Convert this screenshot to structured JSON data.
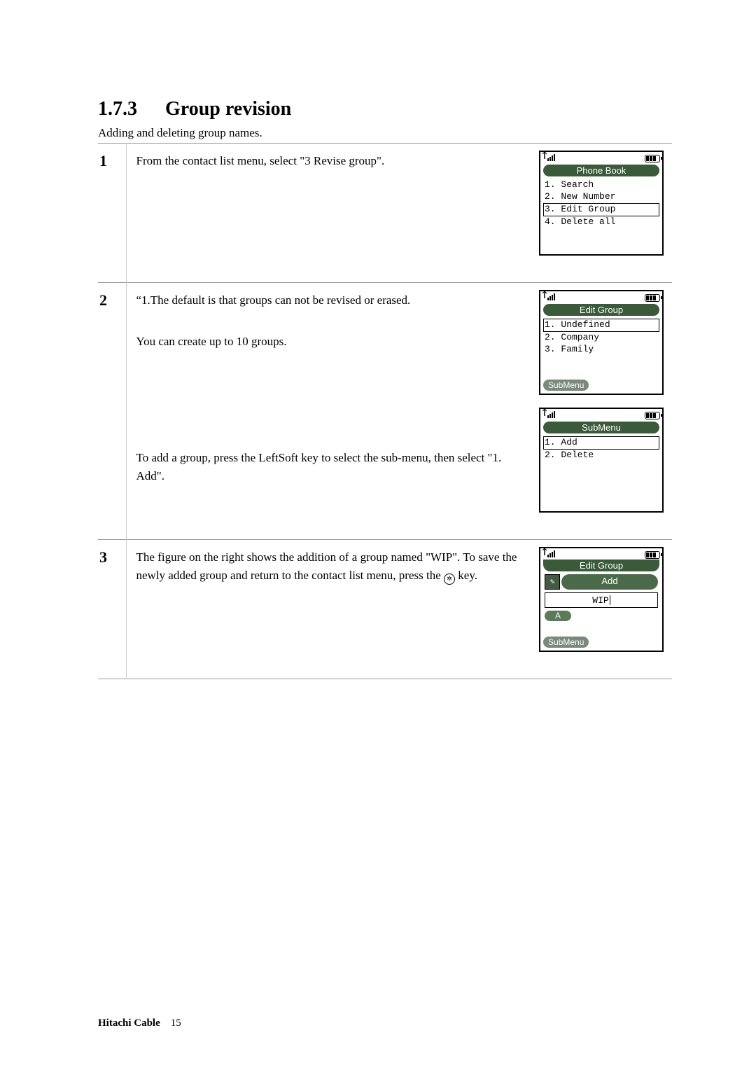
{
  "heading": {
    "number": "1.7.3",
    "title": "Group revision"
  },
  "intro": "Adding and deleting group names.",
  "steps": [
    {
      "num": "1",
      "blocks": [
        {
          "text": "From the contact list menu, select \"3 Revise group\"."
        }
      ],
      "screens": [
        {
          "title": "Phone Book",
          "title_style": "full",
          "items": [
            {
              "label": "1. Search",
              "selected": false
            },
            {
              "label": "2. New Number",
              "selected": false
            },
            {
              "label": "3. Edit Group",
              "selected": true
            },
            {
              "label": "4. Delete all",
              "selected": false
            }
          ],
          "softkey": null,
          "colors": {
            "title_bg": "#3a5a3a",
            "title_fg": "#ffffff"
          }
        }
      ]
    },
    {
      "num": "2",
      "blocks": [
        {
          "text_lines": [
            "“1.The default is that groups can not be revised or erased.",
            "You can create up to 10 groups."
          ]
        },
        {
          "text": "To add a group, press the LeftSoft key to select the sub-menu, then select \"1. Add\"."
        }
      ],
      "screens": [
        {
          "title": "Edit Group",
          "title_style": "full",
          "items": [
            {
              "label": "1. Undefined",
              "selected": true
            },
            {
              "label": "2. Company",
              "selected": false
            },
            {
              "label": "3. Family",
              "selected": false
            }
          ],
          "softkey": "SubMenu",
          "colors": {
            "title_bg": "#3a5a3a",
            "title_fg": "#ffffff",
            "softkey_bg": "#7a8a7a"
          }
        },
        {
          "title": "SubMenu",
          "title_style": "full",
          "items": [
            {
              "label": "1. Add",
              "selected": true
            },
            {
              "label": "2. Delete",
              "selected": false
            }
          ],
          "softkey": null,
          "colors": {
            "title_bg": "#3a5a3a",
            "title_fg": "#ffffff"
          }
        }
      ]
    },
    {
      "num": "3",
      "blocks": [
        {
          "text_with_key": {
            "before": "The figure on the right shows the addition of a group named \"WIP\". To save the newly added group and return to the contact list menu, press the ",
            "key_glyph": "✲",
            "after": " key."
          }
        }
      ],
      "screens": [
        {
          "type": "input",
          "partial_title": "Edit Group",
          "add_label": "Add",
          "input_value": "WIP",
          "mode": "A",
          "softkey": "SubMenu",
          "colors": {
            "title_bg": "#3a5a3a",
            "add_bg": "#4a6a4a",
            "mode_bg": "#5a7a5a",
            "softkey_bg": "#7a8a7a"
          }
        }
      ]
    }
  ],
  "footer": {
    "brand": "Hitachi Cable",
    "page": "15"
  }
}
